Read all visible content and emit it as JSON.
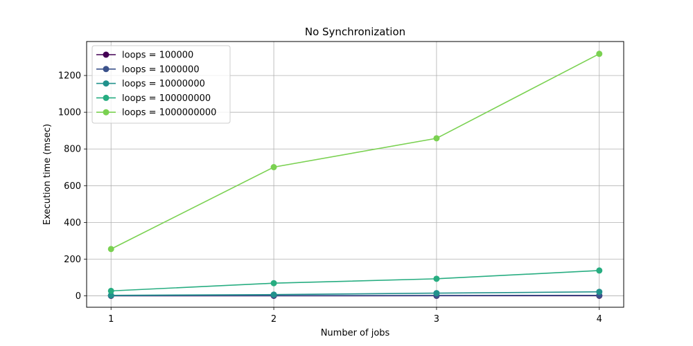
{
  "chart_data": {
    "type": "line",
    "title": "No Synchronization",
    "xlabel": "Number of jobs",
    "ylabel": "Execution time (msec)",
    "x": [
      1,
      2,
      3,
      4
    ],
    "xticks": [
      "1",
      "2",
      "3",
      "4"
    ],
    "yticks": [
      "0",
      "200",
      "400",
      "600",
      "800",
      "1000",
      "1200"
    ],
    "xlim": [
      0.85,
      4.15
    ],
    "ylim": [
      -62,
      1385
    ],
    "grid": true,
    "legend_position": "top-left",
    "series": [
      {
        "name": "loops = 100000",
        "color": "#440154",
        "values": [
          0.3,
          0.4,
          0.6,
          0.8
        ]
      },
      {
        "name": "loops = 1000000",
        "color": "#3b528b",
        "values": [
          1.5,
          1.8,
          2.2,
          3.0
        ]
      },
      {
        "name": "loops = 10000000",
        "color": "#21918c",
        "values": [
          3,
          7,
          15,
          22
        ]
      },
      {
        "name": "loops = 100000000",
        "color": "#27ad81",
        "values": [
          27,
          69,
          93,
          138
        ]
      },
      {
        "name": "loops = 1000000000",
        "color": "#7ad151",
        "values": [
          255,
          701,
          858,
          1318
        ]
      }
    ]
  }
}
